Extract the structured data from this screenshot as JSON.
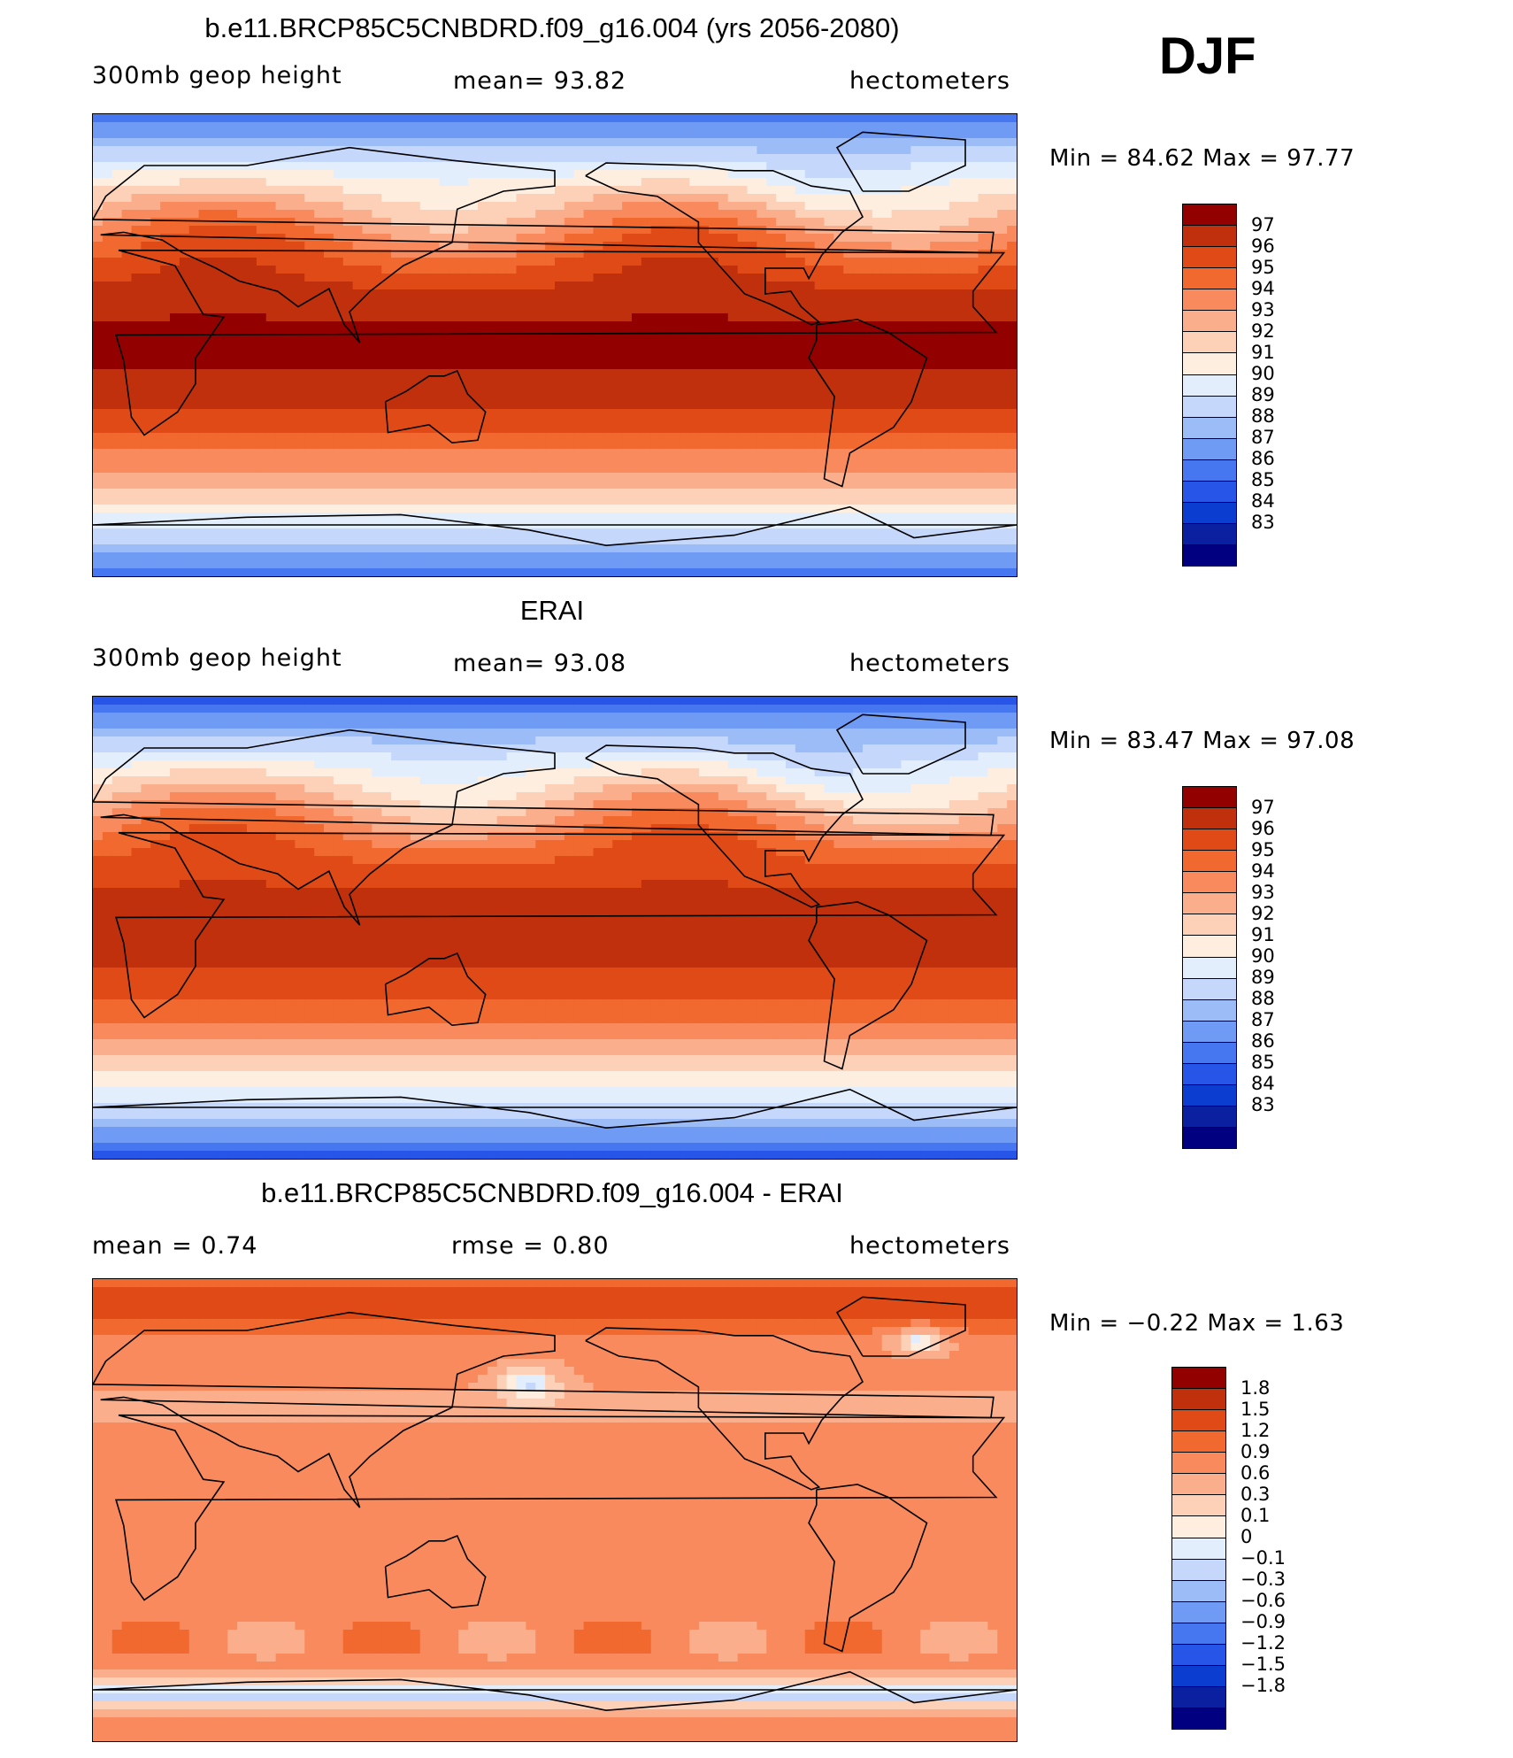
{
  "season": "DJF",
  "colors": {
    "abs_scale": [
      "#000080",
      "#0a20a0",
      "#0b3dd1",
      "#2755e8",
      "#4677f0",
      "#6f9bf5",
      "#9cbcf8",
      "#c5d8fb",
      "#e3eefd",
      "#fdeee0",
      "#fdd0b8",
      "#fbae8c",
      "#f98a5d",
      "#f1692f",
      "#e04a16",
      "#c0300c",
      "#920000"
    ],
    "diff_scale": [
      "#000080",
      "#0a20a0",
      "#0b3dd1",
      "#2755e8",
      "#4677f0",
      "#6f9bf5",
      "#9cbcf8",
      "#c5d8fb",
      "#e3eefd",
      "#fdeee0",
      "#fdd0b8",
      "#fbae8c",
      "#f98a5d",
      "#f1692f",
      "#e04a16",
      "#c0300c",
      "#920000"
    ],
    "coast": "#000000"
  },
  "panels": [
    {
      "title": "b.e11.BRCP85C5CNBDRD.f09_g16.004 (yrs 2056-2080)",
      "left_label": "300mb geop height",
      "center_label": "mean=  93.82",
      "right_label": "hectometers",
      "minmax": "Min =   84.62  Max =    97.77",
      "kind": "abs",
      "ticks": [
        "97",
        "96",
        "95",
        "94",
        "93",
        "92",
        "91",
        "90",
        "89",
        "88",
        "87",
        "86",
        "85",
        "84",
        "83"
      ]
    },
    {
      "title": "ERAI",
      "left_label": "300mb geop height",
      "center_label": "mean=  93.08",
      "right_label": "hectometers",
      "minmax": "Min =   83.47  Max =    97.08",
      "kind": "abs",
      "ticks": [
        "97",
        "96",
        "95",
        "94",
        "93",
        "92",
        "91",
        "90",
        "89",
        "88",
        "87",
        "86",
        "85",
        "84",
        "83"
      ]
    },
    {
      "title": "b.e11.BRCP85C5CNBDRD.f09_g16.004 - ERAI",
      "left_label": "mean =    0.74",
      "center_label": "rmse =    0.80",
      "right_label": "hectometers",
      "minmax": "Min =   −0.22  Max =     1.63",
      "kind": "diff",
      "ticks": [
        "1.8",
        "1.5",
        "1.2",
        "0.9",
        "0.6",
        "0.3",
        "0.1",
        "0",
        "−0.1",
        "−0.3",
        "−0.6",
        "−0.9",
        "−1.2",
        "−1.5",
        "−1.8"
      ]
    }
  ]
}
